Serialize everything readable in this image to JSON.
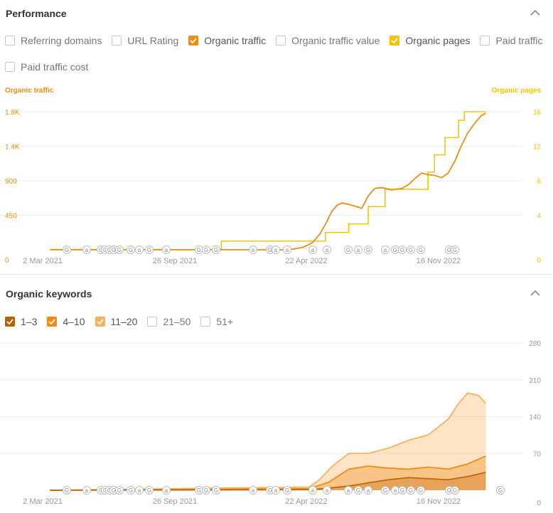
{
  "performance": {
    "title": "Performance",
    "checkboxes": [
      {
        "label": "Referring domains",
        "checked": false,
        "color": "#c7c7c7"
      },
      {
        "label": "URL Rating",
        "checked": false,
        "color": "#c7c7c7"
      },
      {
        "label": "Organic traffic",
        "checked": true,
        "color": "#f28c0f"
      },
      {
        "label": "Organic traffic value",
        "checked": false,
        "color": "#c7c7c7"
      },
      {
        "label": "Organic pages",
        "checked": true,
        "color": "#f5c400"
      },
      {
        "label": "Paid traffic",
        "checked": false,
        "color": "#c7c7c7"
      },
      {
        "label": "Paid traffic cost",
        "checked": false,
        "color": "#c7c7c7"
      }
    ]
  },
  "keywords": {
    "title": "Organic keywords",
    "checkboxes": [
      {
        "label": "1–3",
        "checked": true,
        "color": "#b85f00"
      },
      {
        "label": "4–10",
        "checked": true,
        "color": "#f28c0f"
      },
      {
        "label": "11–20",
        "checked": true,
        "color": "#f9b25c"
      },
      {
        "label": "21–50",
        "checked": false,
        "color": "#c7c7c7"
      },
      {
        "label": "51+",
        "checked": false,
        "color": "#c7c7c7"
      }
    ]
  },
  "chart_data": [
    {
      "type": "line",
      "title": "",
      "ylabel_left": "Organic traffic",
      "ylabel_right": "Organic pages",
      "x_ticks": [
        "2 Mar 2021",
        "26 Sep 2021",
        "22 Apr 2022",
        "16 Nov 2022"
      ],
      "x_range": [
        "2021-03-01",
        "2023-02-10"
      ],
      "y_left_ticks": [
        "0",
        "450",
        "900",
        "1.4K",
        "1.8K"
      ],
      "y_left_values": [
        0,
        450,
        900,
        1350,
        1800
      ],
      "y_left_range": [
        0,
        1800
      ],
      "y_right_ticks": [
        "0",
        "4",
        "8",
        "12",
        "16"
      ],
      "y_right_values": [
        0,
        4,
        8,
        12,
        16
      ],
      "y_right_range": [
        0,
        16
      ],
      "grid": true,
      "colors": {
        "traffic": "#f28c0f",
        "pages": "#f5c400",
        "grid": "#ececec",
        "left_axis": "#f28c0f",
        "right_axis": "#f5c400",
        "ticks": "#999999"
      },
      "series": [
        {
          "name": "Organic traffic",
          "axis": "left",
          "x": [
            "2021-03-12",
            "2022-03-15",
            "2022-04-05",
            "2022-04-20",
            "2022-05-01",
            "2022-05-10",
            "2022-05-20",
            "2022-05-28",
            "2022-06-05",
            "2022-06-20",
            "2022-07-05",
            "2022-07-15",
            "2022-07-25",
            "2022-08-05",
            "2022-08-20",
            "2022-09-05",
            "2022-09-15",
            "2022-09-25",
            "2022-10-05",
            "2022-10-15",
            "2022-10-25",
            "2022-11-05",
            "2022-11-15",
            "2022-11-25",
            "2022-12-05",
            "2022-12-15",
            "2022-12-25",
            "2023-01-05",
            "2023-01-12"
          ],
          "y": [
            0,
            0,
            30,
            90,
            200,
            330,
            500,
            580,
            610,
            580,
            540,
            700,
            800,
            810,
            780,
            800,
            850,
            930,
            1000,
            980,
            970,
            940,
            1000,
            1150,
            1350,
            1520,
            1640,
            1750,
            1780
          ]
        },
        {
          "name": "Organic pages",
          "axis": "right",
          "x": [
            "2021-03-12",
            "2021-12-01",
            "2021-12-01",
            "2022-05-10",
            "2022-05-10",
            "2022-06-15",
            "2022-06-15",
            "2022-07-15",
            "2022-07-15",
            "2022-08-10",
            "2022-08-10",
            "2022-10-15",
            "2022-10-15",
            "2022-10-25",
            "2022-10-25",
            "2022-11-10",
            "2022-11-10",
            "2022-12-01",
            "2022-12-01",
            "2022-12-10",
            "2022-12-10",
            "2023-01-12"
          ],
          "y": [
            0,
            0,
            1,
            1,
            2,
            2,
            3,
            3,
            5,
            5,
            7,
            7,
            9,
            9,
            11,
            11,
            13,
            13,
            15,
            15,
            16,
            16
          ]
        }
      ],
      "annotations": [
        "G",
        "a",
        "G",
        "G",
        "G",
        "G",
        "G",
        "G",
        "a",
        "G",
        "a",
        "G",
        "G",
        "G",
        "a",
        "G",
        "a",
        "a",
        "a",
        "a",
        "G",
        "a",
        "G",
        "a",
        "G",
        "G",
        "G",
        "G",
        "G",
        "G"
      ]
    },
    {
      "type": "area",
      "title": "",
      "x_ticks": [
        "2 Mar 2021",
        "26 Sep 2021",
        "22 Apr 2022",
        "16 Nov 2022"
      ],
      "x_range": [
        "2021-03-01",
        "2023-02-10"
      ],
      "y_ticks": [
        "0",
        "70",
        "140",
        "210",
        "280"
      ],
      "y_values": [
        0,
        70,
        140,
        210,
        280
      ],
      "y_range": [
        0,
        280
      ],
      "grid": true,
      "stacked": true,
      "colors": {
        "p1_3": "#c0660a",
        "p4_10": "#f28c0f",
        "p11_20": "#f9b25c",
        "grid": "#ececec",
        "ticks": "#999999"
      },
      "series": [
        {
          "name": "1–3",
          "x": [
            "2021-03-12",
            "2022-04-15",
            "2022-05-15",
            "2022-06-15",
            "2022-07-15",
            "2022-08-15",
            "2022-09-15",
            "2022-10-15",
            "2022-11-15",
            "2022-12-15",
            "2023-01-12"
          ],
          "y": [
            0,
            1,
            4,
            8,
            14,
            20,
            24,
            22,
            20,
            26,
            34
          ]
        },
        {
          "name": "4–10",
          "x": [
            "2021-03-12",
            "2022-04-15",
            "2022-05-15",
            "2022-06-15",
            "2022-07-15",
            "2022-08-15",
            "2022-09-15",
            "2022-10-15",
            "2022-11-15",
            "2022-12-15",
            "2023-01-12"
          ],
          "y": [
            0,
            3,
            15,
            40,
            46,
            42,
            40,
            44,
            40,
            50,
            65
          ]
        },
        {
          "name": "11–20",
          "x": [
            "2021-03-12",
            "2022-04-15",
            "2022-05-01",
            "2022-05-20",
            "2022-06-15",
            "2022-07-15",
            "2022-08-15",
            "2022-09-15",
            "2022-10-15",
            "2022-11-15",
            "2022-12-01",
            "2022-12-15",
            "2023-01-01",
            "2023-01-12"
          ],
          "y": [
            0,
            6,
            20,
            45,
            70,
            70,
            80,
            95,
            105,
            135,
            165,
            185,
            180,
            165
          ]
        }
      ],
      "annotations": [
        "G",
        "a",
        "G",
        "G",
        "G",
        "G",
        "G",
        "G",
        "a",
        "G",
        "a",
        "G",
        "G",
        "G",
        "a",
        "G",
        "a",
        "G",
        "a",
        "a",
        "a",
        "G",
        "a",
        "G",
        "a",
        "G",
        "G",
        "G",
        "G",
        "G",
        "G",
        "G"
      ]
    }
  ]
}
